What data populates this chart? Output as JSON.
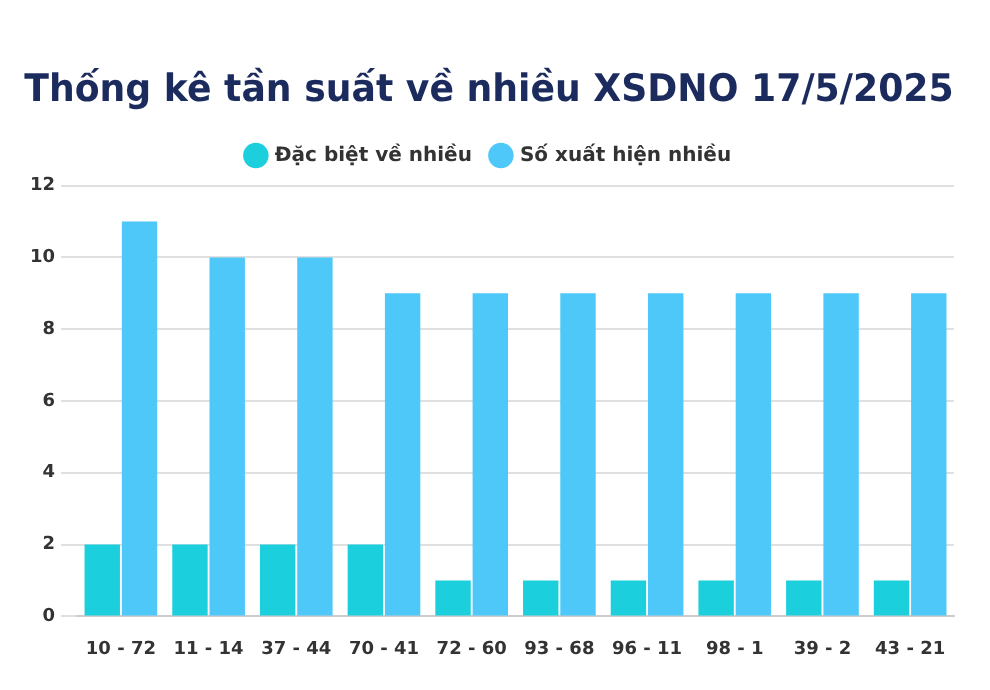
{
  "chart_data": {
    "type": "bar",
    "title": "Thống kê tần suất về nhiều XSDNO 17/5/2025",
    "categories": [
      "10 - 72",
      "11 - 14",
      "37 - 44",
      "70 - 41",
      "72 - 60",
      "93 - 68",
      "96 - 11",
      "98 - 1",
      "39 - 2",
      "43 - 21"
    ],
    "series": [
      {
        "name": "Đặc biệt về nhiều",
        "color": "#1ccfdc",
        "values": [
          2,
          2,
          2,
          2,
          1,
          1,
          1,
          1,
          1,
          1
        ]
      },
      {
        "name": "Số xuất hiện nhiều",
        "color": "#4ec8f8",
        "values": [
          11,
          10,
          10,
          9,
          9,
          9,
          9,
          9,
          9,
          9
        ]
      }
    ],
    "ylim": [
      0,
      12
    ],
    "yticks": [
      0,
      2,
      4,
      6,
      8,
      10,
      12
    ],
    "grid": "y",
    "legend": "top"
  }
}
